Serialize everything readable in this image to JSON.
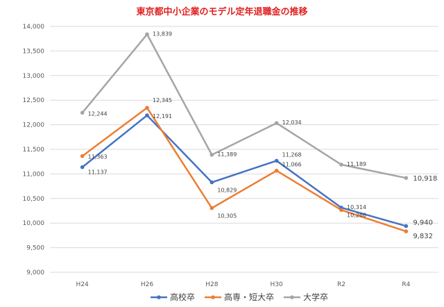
{
  "chart_data": {
    "type": "line",
    "title": "東京都中小企業のモデル定年退職金の推移",
    "xlabel": "",
    "ylabel": "",
    "categories": [
      "H24",
      "H26",
      "H28",
      "H30",
      "R2",
      "R4"
    ],
    "ylim": [
      9000,
      14000
    ],
    "ytick_step": 500,
    "grid": true,
    "legend_position": "bottom",
    "series": [
      {
        "name": "高校卒",
        "color": "#4472c4",
        "values": [
          11137,
          12191,
          10829,
          11268,
          10314,
          9940
        ],
        "labels": [
          "11,137",
          "12,191",
          "10,829",
          "11,268",
          "10,314",
          "9,940"
        ]
      },
      {
        "name": "高専・短大卒",
        "color": "#ed7d31",
        "values": [
          11363,
          12345,
          10305,
          11066,
          10266,
          9832
        ],
        "labels": [
          "11,363",
          "12,345",
          "10,305",
          "11,066",
          "10,266",
          "9,832"
        ]
      },
      {
        "name": "大学卒",
        "color": "#a5a5a5",
        "values": [
          12244,
          13839,
          11389,
          12034,
          11189,
          10918
        ],
        "labels": [
          "12,244",
          "13,839",
          "11,389",
          "12,034",
          "11,189",
          "10,918"
        ]
      }
    ]
  }
}
